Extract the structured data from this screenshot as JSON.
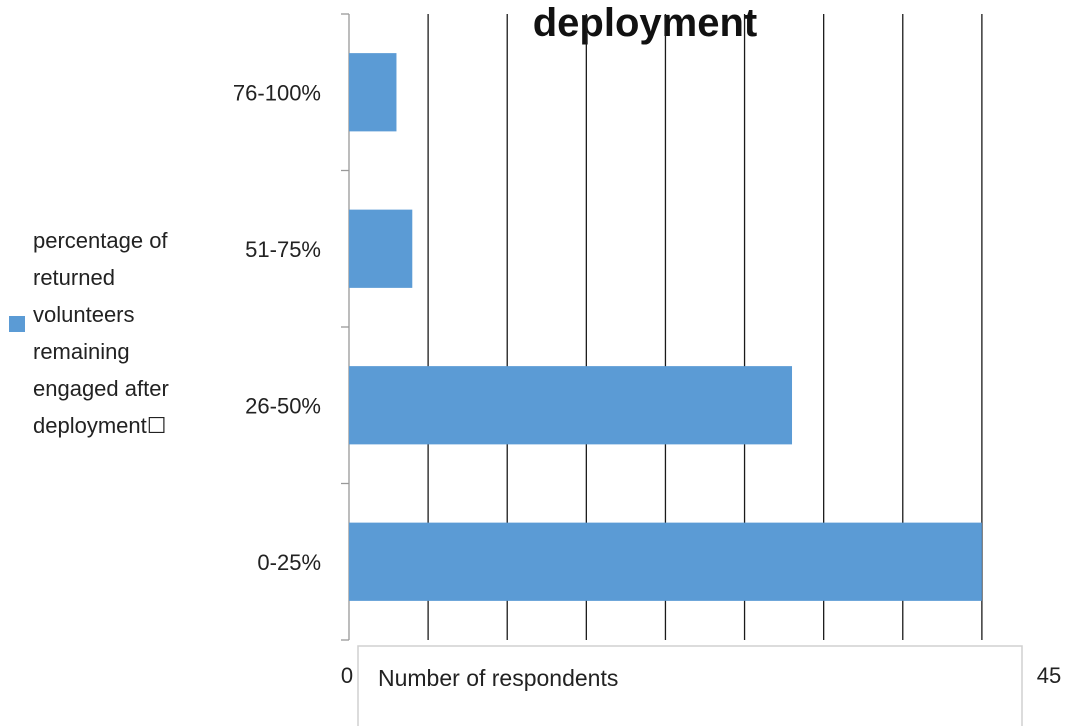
{
  "chart_data": {
    "type": "bar",
    "orientation": "horizontal",
    "title": "deployment",
    "xlabel": "Number of respondents",
    "categories": [
      "0-25%",
      "26-50%",
      "51-75%",
      "76-100%"
    ],
    "series": [
      {
        "name": "percentage of returned volunteers remaining engaged after deployment☐",
        "values": [
          40,
          28,
          4,
          3
        ]
      }
    ],
    "xlim": [
      0,
      45
    ],
    "x_tick_labels": [
      "0",
      "45"
    ],
    "grid": "vertical",
    "legend_position": "left",
    "colors": {
      "bar": "#5b9bd5",
      "grid": "#1a1a1a"
    }
  }
}
